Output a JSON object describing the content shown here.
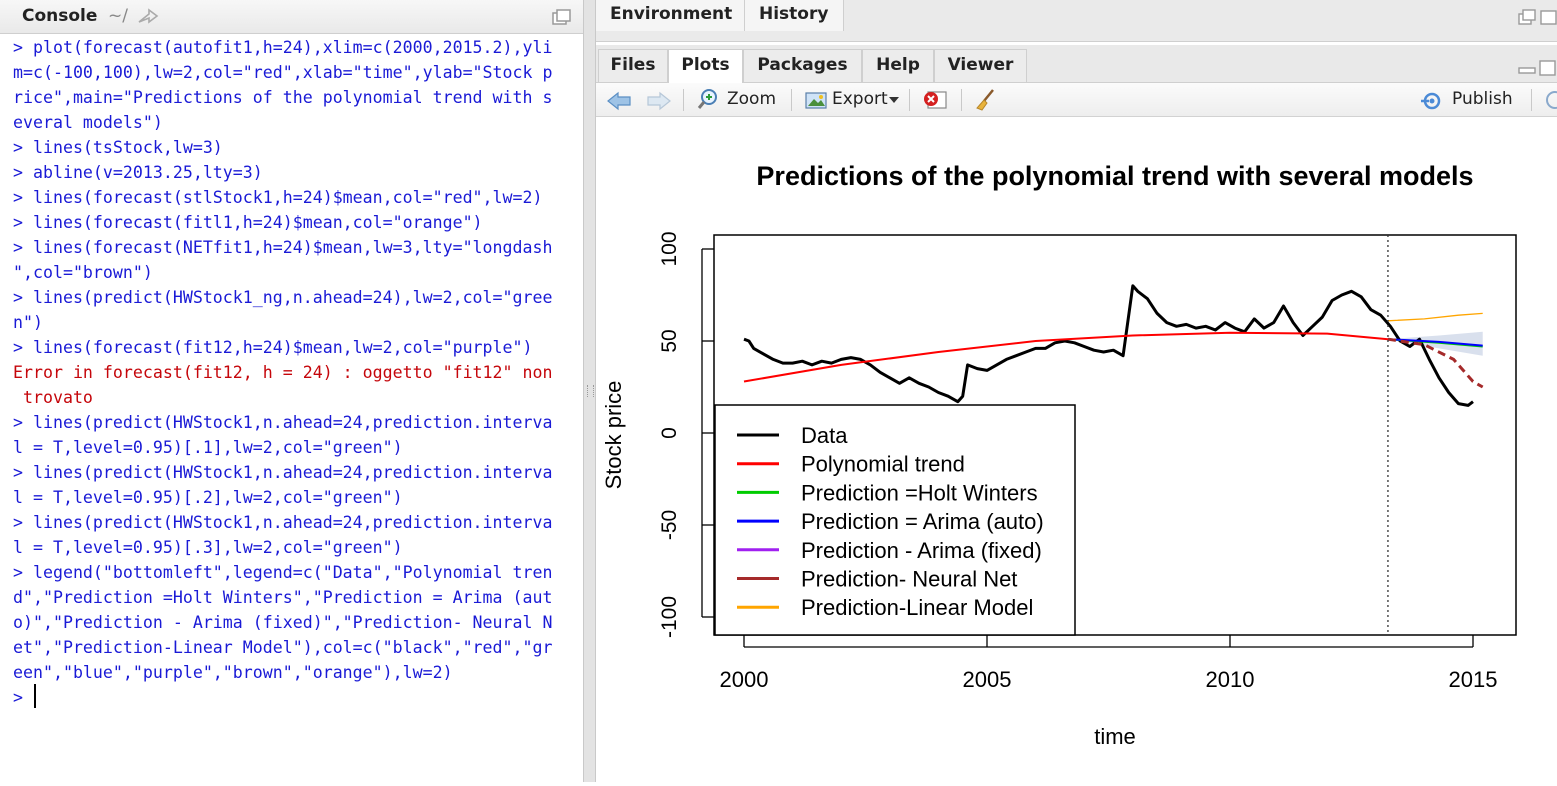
{
  "console": {
    "title": "Console",
    "path": "~/",
    "lines": [
      {
        "text": "> plot(forecast(autofit1,h=24),xlim=c(2000,2015.2),yli",
        "type": "input"
      },
      {
        "text": "m=c(-100,100),lw=2,col=\"red\",xlab=\"time\",ylab=\"Stock p",
        "type": "input"
      },
      {
        "text": "rice\",main=\"Predictions of the polynomial trend with s",
        "type": "input"
      },
      {
        "text": "everal models\")",
        "type": "input"
      },
      {
        "text": "> lines(tsStock,lw=3)",
        "type": "input"
      },
      {
        "text": "> abline(v=2013.25,lty=3)",
        "type": "input"
      },
      {
        "text": "> lines(forecast(stlStock1,h=24)$mean,col=\"red\",lw=2)",
        "type": "input"
      },
      {
        "text": "> lines(forecast(fitl1,h=24)$mean,col=\"orange\")",
        "type": "input"
      },
      {
        "text": "> lines(forecast(NETfit1,h=24)$mean,lw=3,lty=\"longdash",
        "type": "input"
      },
      {
        "text": "\",col=\"brown\")",
        "type": "input"
      },
      {
        "text": "> lines(predict(HWStock1_ng,n.ahead=24),lw=2,col=\"gree",
        "type": "input"
      },
      {
        "text": "n\")",
        "type": "input"
      },
      {
        "text": "> lines(forecast(fit12,h=24)$mean,lw=2,col=\"purple\")",
        "type": "input"
      },
      {
        "text": "Error in forecast(fit12, h = 24) : oggetto \"fit12\" non",
        "type": "error"
      },
      {
        "text": " trovato",
        "type": "error"
      },
      {
        "text": "> lines(predict(HWStock1,n.ahead=24,prediction.interva",
        "type": "input"
      },
      {
        "text": "l = T,level=0.95)[.1],lw=2,col=\"green\")",
        "type": "input"
      },
      {
        "text": "> lines(predict(HWStock1,n.ahead=24,prediction.interva",
        "type": "input"
      },
      {
        "text": "l = T,level=0.95)[.2],lw=2,col=\"green\")",
        "type": "input"
      },
      {
        "text": "> lines(predict(HWStock1,n.ahead=24,prediction.interva",
        "type": "input"
      },
      {
        "text": "l = T,level=0.95)[.3],lw=2,col=\"green\")",
        "type": "input"
      },
      {
        "text": "> legend(\"bottomleft\",legend=c(\"Data\",\"Polynomial tren",
        "type": "input"
      },
      {
        "text": "d\",\"Prediction =Holt Winters\",\"Prediction = Arima (aut",
        "type": "input"
      },
      {
        "text": "o)\",\"Prediction - Arima (fixed)\",\"Prediction- Neural N",
        "type": "input"
      },
      {
        "text": "et\",\"Prediction-Linear Model\"),col=c(\"black\",\"red\",\"gr",
        "type": "input"
      },
      {
        "text": "een\",\"blue\",\"purple\",\"brown\",\"orange\"),lw=2)",
        "type": "input"
      },
      {
        "text": "> ",
        "type": "prompt"
      }
    ]
  },
  "env_pane": {
    "tabs": [
      "Environment",
      "History"
    ]
  },
  "plots_pane": {
    "tabs": [
      "Files",
      "Plots",
      "Packages",
      "Help",
      "Viewer"
    ],
    "active_tab": "Plots",
    "toolbar": {
      "zoom_label": "Zoom",
      "export_label": "Export",
      "publish_label": "Publish"
    }
  },
  "chart_data": {
    "type": "line",
    "title": "Predictions of the polynomial trend with several models",
    "xlabel": "time",
    "ylabel": "Stock price",
    "xlim": [
      2000,
      2015.2
    ],
    "ylim": [
      -100,
      100
    ],
    "x_ticks": [
      2000,
      2005,
      2010,
      2015
    ],
    "y_ticks": [
      -100,
      -50,
      0,
      50,
      100
    ],
    "vline": 2013.25,
    "legend_position": "bottomleft",
    "legend": [
      {
        "label": "Data",
        "color": "#000000"
      },
      {
        "label": "Polynomial trend",
        "color": "#ff0000"
      },
      {
        "label": "Prediction =Holt Winters",
        "color": "#00cc00"
      },
      {
        "label": "Prediction = Arima (auto)",
        "color": "#0000ff"
      },
      {
        "label": "Prediction - Arima (fixed)",
        "color": "#a020f0"
      },
      {
        "label": "Prediction- Neural Net",
        "color": "#a52a2a"
      },
      {
        "label": "Prediction-Linear Model",
        "color": "#ffa500"
      }
    ],
    "series": [
      {
        "name": "Data",
        "color": "#000000",
        "width": 3,
        "points": [
          [
            2000,
            51
          ],
          [
            2000.1,
            50
          ],
          [
            2000.2,
            46
          ],
          [
            2000.4,
            43
          ],
          [
            2000.6,
            40
          ],
          [
            2000.8,
            38
          ],
          [
            2001.0,
            38
          ],
          [
            2001.2,
            39
          ],
          [
            2001.4,
            37
          ],
          [
            2001.6,
            39
          ],
          [
            2001.8,
            38
          ],
          [
            2002.0,
            40
          ],
          [
            2002.2,
            41
          ],
          [
            2002.4,
            40
          ],
          [
            2002.6,
            37
          ],
          [
            2002.8,
            33
          ],
          [
            2003.0,
            30
          ],
          [
            2003.2,
            27
          ],
          [
            2003.4,
            30
          ],
          [
            2003.6,
            27
          ],
          [
            2003.8,
            25
          ],
          [
            2004.0,
            22
          ],
          [
            2004.2,
            20
          ],
          [
            2004.4,
            17
          ],
          [
            2004.5,
            20
          ],
          [
            2004.6,
            37
          ],
          [
            2004.8,
            35
          ],
          [
            2005.0,
            34
          ],
          [
            2005.2,
            37
          ],
          [
            2005.4,
            40
          ],
          [
            2005.6,
            42
          ],
          [
            2005.8,
            44
          ],
          [
            2006.0,
            46
          ],
          [
            2006.2,
            46
          ],
          [
            2006.4,
            49
          ],
          [
            2006.6,
            50
          ],
          [
            2006.8,
            49
          ],
          [
            2007.0,
            47
          ],
          [
            2007.2,
            45
          ],
          [
            2007.4,
            44
          ],
          [
            2007.6,
            45
          ],
          [
            2007.8,
            42
          ],
          [
            2008.0,
            80
          ],
          [
            2008.1,
            77
          ],
          [
            2008.3,
            73
          ],
          [
            2008.5,
            65
          ],
          [
            2008.7,
            60
          ],
          [
            2008.9,
            58
          ],
          [
            2009.1,
            59
          ],
          [
            2009.3,
            57
          ],
          [
            2009.5,
            58
          ],
          [
            2009.7,
            56
          ],
          [
            2009.9,
            60
          ],
          [
            2010.1,
            57
          ],
          [
            2010.3,
            55
          ],
          [
            2010.5,
            62
          ],
          [
            2010.7,
            57
          ],
          [
            2010.9,
            60
          ],
          [
            2011.1,
            69
          ],
          [
            2011.3,
            60
          ],
          [
            2011.5,
            53
          ],
          [
            2011.7,
            58
          ],
          [
            2011.9,
            63
          ],
          [
            2012.1,
            72
          ],
          [
            2012.3,
            75
          ],
          [
            2012.5,
            77
          ],
          [
            2012.7,
            74
          ],
          [
            2012.9,
            67
          ],
          [
            2013.1,
            64
          ],
          [
            2013.3,
            58
          ],
          [
            2013.5,
            50
          ],
          [
            2013.7,
            47
          ],
          [
            2013.9,
            51
          ],
          [
            2014.1,
            40
          ],
          [
            2014.3,
            30
          ],
          [
            2014.5,
            22
          ],
          [
            2014.7,
            16
          ],
          [
            2014.9,
            15
          ],
          [
            2015.0,
            17
          ]
        ]
      },
      {
        "name": "Polynomial trend",
        "color": "#ff0000",
        "width": 2,
        "points": [
          [
            2000,
            28
          ],
          [
            2002,
            37
          ],
          [
            2004,
            44
          ],
          [
            2006,
            50
          ],
          [
            2008,
            53
          ],
          [
            2010,
            54.5
          ],
          [
            2012,
            54
          ],
          [
            2013.25,
            51
          ]
        ]
      },
      {
        "name": "Prediction =Holt Winters",
        "color": "#00cc00",
        "width": 2,
        "points": [
          [
            2013.25,
            51
          ],
          [
            2014.3,
            49
          ],
          [
            2015.2,
            47
          ]
        ]
      },
      {
        "name": "Prediction = Arima (auto)",
        "color": "#0000ff",
        "width": 2,
        "points": [
          [
            2013.25,
            51
          ],
          [
            2014.3,
            49.5
          ],
          [
            2015.2,
            47.5
          ]
        ]
      },
      {
        "name": "Prediction- Neural Net",
        "color": "#a52a2a",
        "width": 3,
        "dash": "8,5",
        "points": [
          [
            2013.25,
            51
          ],
          [
            2014.0,
            48
          ],
          [
            2014.6,
            40
          ],
          [
            2015.0,
            28
          ],
          [
            2015.2,
            25
          ]
        ]
      },
      {
        "name": "Prediction-Linear Model",
        "color": "#ffa500",
        "width": 1.3,
        "points": [
          [
            2013.25,
            61
          ],
          [
            2014.0,
            62
          ],
          [
            2014.7,
            64
          ],
          [
            2015.2,
            65
          ]
        ]
      }
    ]
  }
}
